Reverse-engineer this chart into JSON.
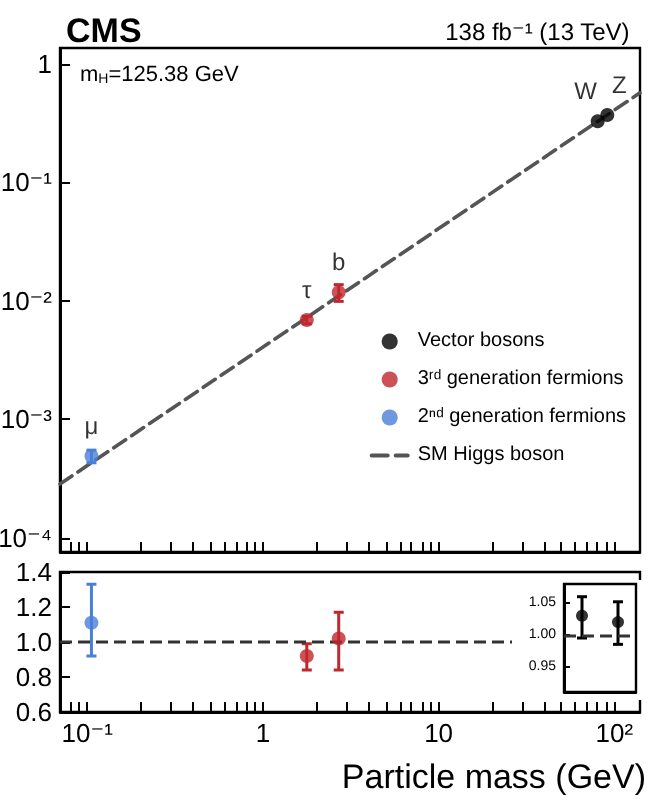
{
  "chart_data": [
    {
      "type": "scatter",
      "title": "CMS",
      "subtitle": "138 fb⁻¹ (13 TeV)",
      "annotations": [
        "m$_{H}$=125.38 GeV",
        {
          "text": "μ",
          "x": 0.1057,
          "y": 0.00049
        },
        {
          "text": "τ",
          "x": 1.777,
          "y": 0.0069
        },
        {
          "text": "b",
          "x": 2.7,
          "y": 0.0118
        },
        {
          "text": "W",
          "x": 80.4,
          "y": 0.328
        },
        {
          "text": "Z",
          "x": 91.19,
          "y": 0.37
        }
      ],
      "series": [
        {
          "name": "Vector bosons",
          "color": "#000000",
          "x": [
            80.4,
            91.19
          ],
          "values": [
            0.328,
            0.37
          ],
          "errors": [
            null,
            null
          ]
        },
        {
          "name": "3ʳᵈ generation fermions",
          "color": "#c0272d",
          "x": [
            1.777,
            2.7
          ],
          "values": [
            0.0069,
            0.0118
          ],
          "errors": [
            [
              0.0064,
              0.0074
            ],
            [
              0.0099,
              0.0137
            ]
          ]
        },
        {
          "name": "2ⁿᵈ generation fermions",
          "color": "#4a7fd8",
          "x": [
            0.1057
          ],
          "values": [
            0.00049
          ],
          "errors": [
            [
              0.00043,
              0.00055
            ]
          ]
        },
        {
          "name": "SM Higgs boson",
          "type": "line",
          "color": "#555555",
          "line_style": "dashed",
          "marker": "none",
          "x": [
            0.07,
            140
          ],
          "values": [
            0.000285,
            0.569
          ]
        }
      ],
      "log": "xy",
      "xlim": [
        0.07,
        140
      ],
      "ylim": [
        7.6e-05,
        1.36
      ],
      "xticks": [
        {
          "value": 0.08,
          "label": null
        },
        {
          "value": 0.09,
          "label": null
        },
        0.1,
        {
          "value": 0.2,
          "label": null
        },
        {
          "value": 0.3,
          "label": null
        },
        {
          "value": 0.4,
          "label": null
        },
        {
          "value": 0.5,
          "label": null
        },
        {
          "value": 0.6,
          "label": null
        },
        {
          "value": 0.7,
          "label": null
        },
        {
          "value": 0.8,
          "label": null
        },
        {
          "value": 0.9,
          "label": null
        },
        1,
        {
          "value": 2,
          "label": null
        },
        {
          "value": 3,
          "label": null
        },
        {
          "value": 4,
          "label": null
        },
        {
          "value": 5,
          "label": null
        },
        {
          "value": 6,
          "label": null
        },
        {
          "value": 7,
          "label": null
        },
        {
          "value": 8,
          "label": null
        },
        {
          "value": 9,
          "label": null
        },
        10,
        {
          "value": 20,
          "label": null
        },
        {
          "value": 30,
          "label": null
        },
        {
          "value": 40,
          "label": null
        },
        {
          "value": 50,
          "label": null
        },
        {
          "value": 60,
          "label": null
        },
        {
          "value": 70,
          "label": null
        },
        {
          "value": 80,
          "label": null
        },
        {
          "value": 90,
          "label": null
        },
        100
      ],
      "yticks": [
        {
          "value": 0.0001,
          "label": "10⁻⁴"
        },
        {
          "value": 0.001,
          "label": "10⁻³"
        },
        {
          "value": 0.01,
          "label": "10⁻²"
        },
        {
          "value": 0.1,
          "label": "10⁻¹"
        },
        1
      ],
      "tick_labels": "y",
      "legend": "right",
      "marker": "circle"
    },
    {
      "type": "scatter",
      "xlabel": "Particle mass (GeV)",
      "series": [
        {
          "color": "#4a7fd8",
          "x": [
            0.1057
          ],
          "values": [
            1.11
          ],
          "errors": [
            [
              0.92,
              1.33
            ]
          ]
        },
        {
          "color": "#c0272d",
          "x": [
            1.777,
            2.7
          ],
          "values": [
            0.92,
            1.02
          ],
          "errors": [
            [
              0.84,
              0.99
            ],
            [
              0.84,
              1.17
            ]
          ]
        }
      ],
      "ref_lines": [
        {
          "axis": "y",
          "value": 1,
          "color": "#333333",
          "line_style": "dashed"
        }
      ],
      "log": "x",
      "xlim": [
        0.07,
        140
      ],
      "ylim": [
        0.6,
        1.4
      ],
      "xticks": [
        {
          "value": 0.08,
          "label": null
        },
        {
          "value": 0.09,
          "label": null
        },
        {
          "value": 0.1,
          "label": "10⁻¹"
        },
        {
          "value": 0.2,
          "label": null
        },
        {
          "value": 0.3,
          "label": null
        },
        {
          "value": 0.4,
          "label": null
        },
        {
          "value": 0.5,
          "label": null
        },
        {
          "value": 0.6,
          "label": null
        },
        {
          "value": 0.7,
          "label": null
        },
        {
          "value": 0.8,
          "label": null
        },
        {
          "value": 0.9,
          "label": null
        },
        1,
        {
          "value": 2,
          "label": null
        },
        {
          "value": 3,
          "label": null
        },
        {
          "value": 4,
          "label": null
        },
        {
          "value": 5,
          "label": null
        },
        {
          "value": 6,
          "label": null
        },
        {
          "value": 7,
          "label": null
        },
        {
          "value": 8,
          "label": null
        },
        {
          "value": 9,
          "label": null
        },
        10,
        {
          "value": 20,
          "label": null
        },
        {
          "value": 30,
          "label": null
        },
        {
          "value": 40,
          "label": null
        },
        {
          "value": 50,
          "label": null
        },
        {
          "value": 60,
          "label": null
        },
        {
          "value": 70,
          "label": null
        },
        {
          "value": 80,
          "label": null
        },
        {
          "value": 90,
          "label": null
        },
        {
          "value": 100,
          "label": "10²"
        }
      ],
      "yticks": [
        0.6,
        0.8,
        {
          "value": 1,
          "label": "1.0"
        },
        1.2,
        1.4
      ],
      "marker": "circle"
    },
    {
      "type": "scatter",
      "categories": [
        null,
        null
      ],
      "series": [
        {
          "color": "#000000",
          "values": [
            1.03,
            1.02
          ],
          "errors": [
            [
              0.995,
              1.06
            ],
            [
              0.985,
              1.052
            ]
          ]
        }
      ],
      "ref_lines": [
        {
          "axis": "y",
          "value": 1,
          "color": "#333333",
          "line_style": "dashed"
        }
      ],
      "ylim": [
        0.91,
        1.08
      ],
      "yticks": [
        {
          "value": 0.95,
          "label": "0.95"
        },
        {
          "value": 1,
          "label": "1.00"
        },
        {
          "value": 1.05,
          "label": "1.05"
        }
      ],
      "tick_labels": "y",
      "marker": "circle"
    }
  ]
}
